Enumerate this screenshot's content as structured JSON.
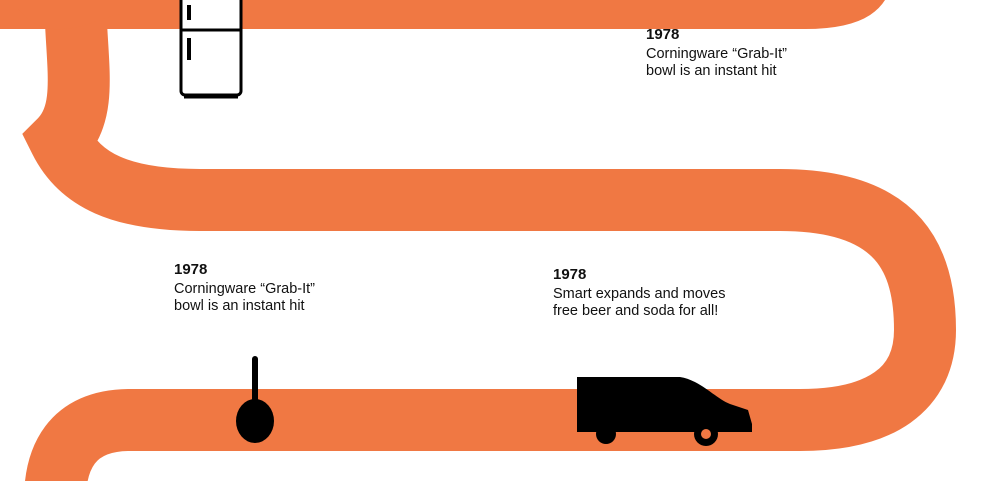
{
  "colors": {
    "ribbon": "#f07843",
    "icon": "#000000",
    "background": "#ffffff",
    "text": "#111111"
  },
  "milestones": [
    {
      "year": "1978",
      "desc": "Corningware “Grab-It”\nbowl is an instant hit",
      "icon": "refrigerator-icon"
    },
    {
      "year": "1978",
      "desc": "Corningware “Grab-It”\nbowl is an instant hit",
      "icon": "ladle-icon"
    },
    {
      "year": "1978",
      "desc": "Smart expands and moves\nfree beer and soda for all!",
      "icon": "taxi-icon"
    }
  ]
}
